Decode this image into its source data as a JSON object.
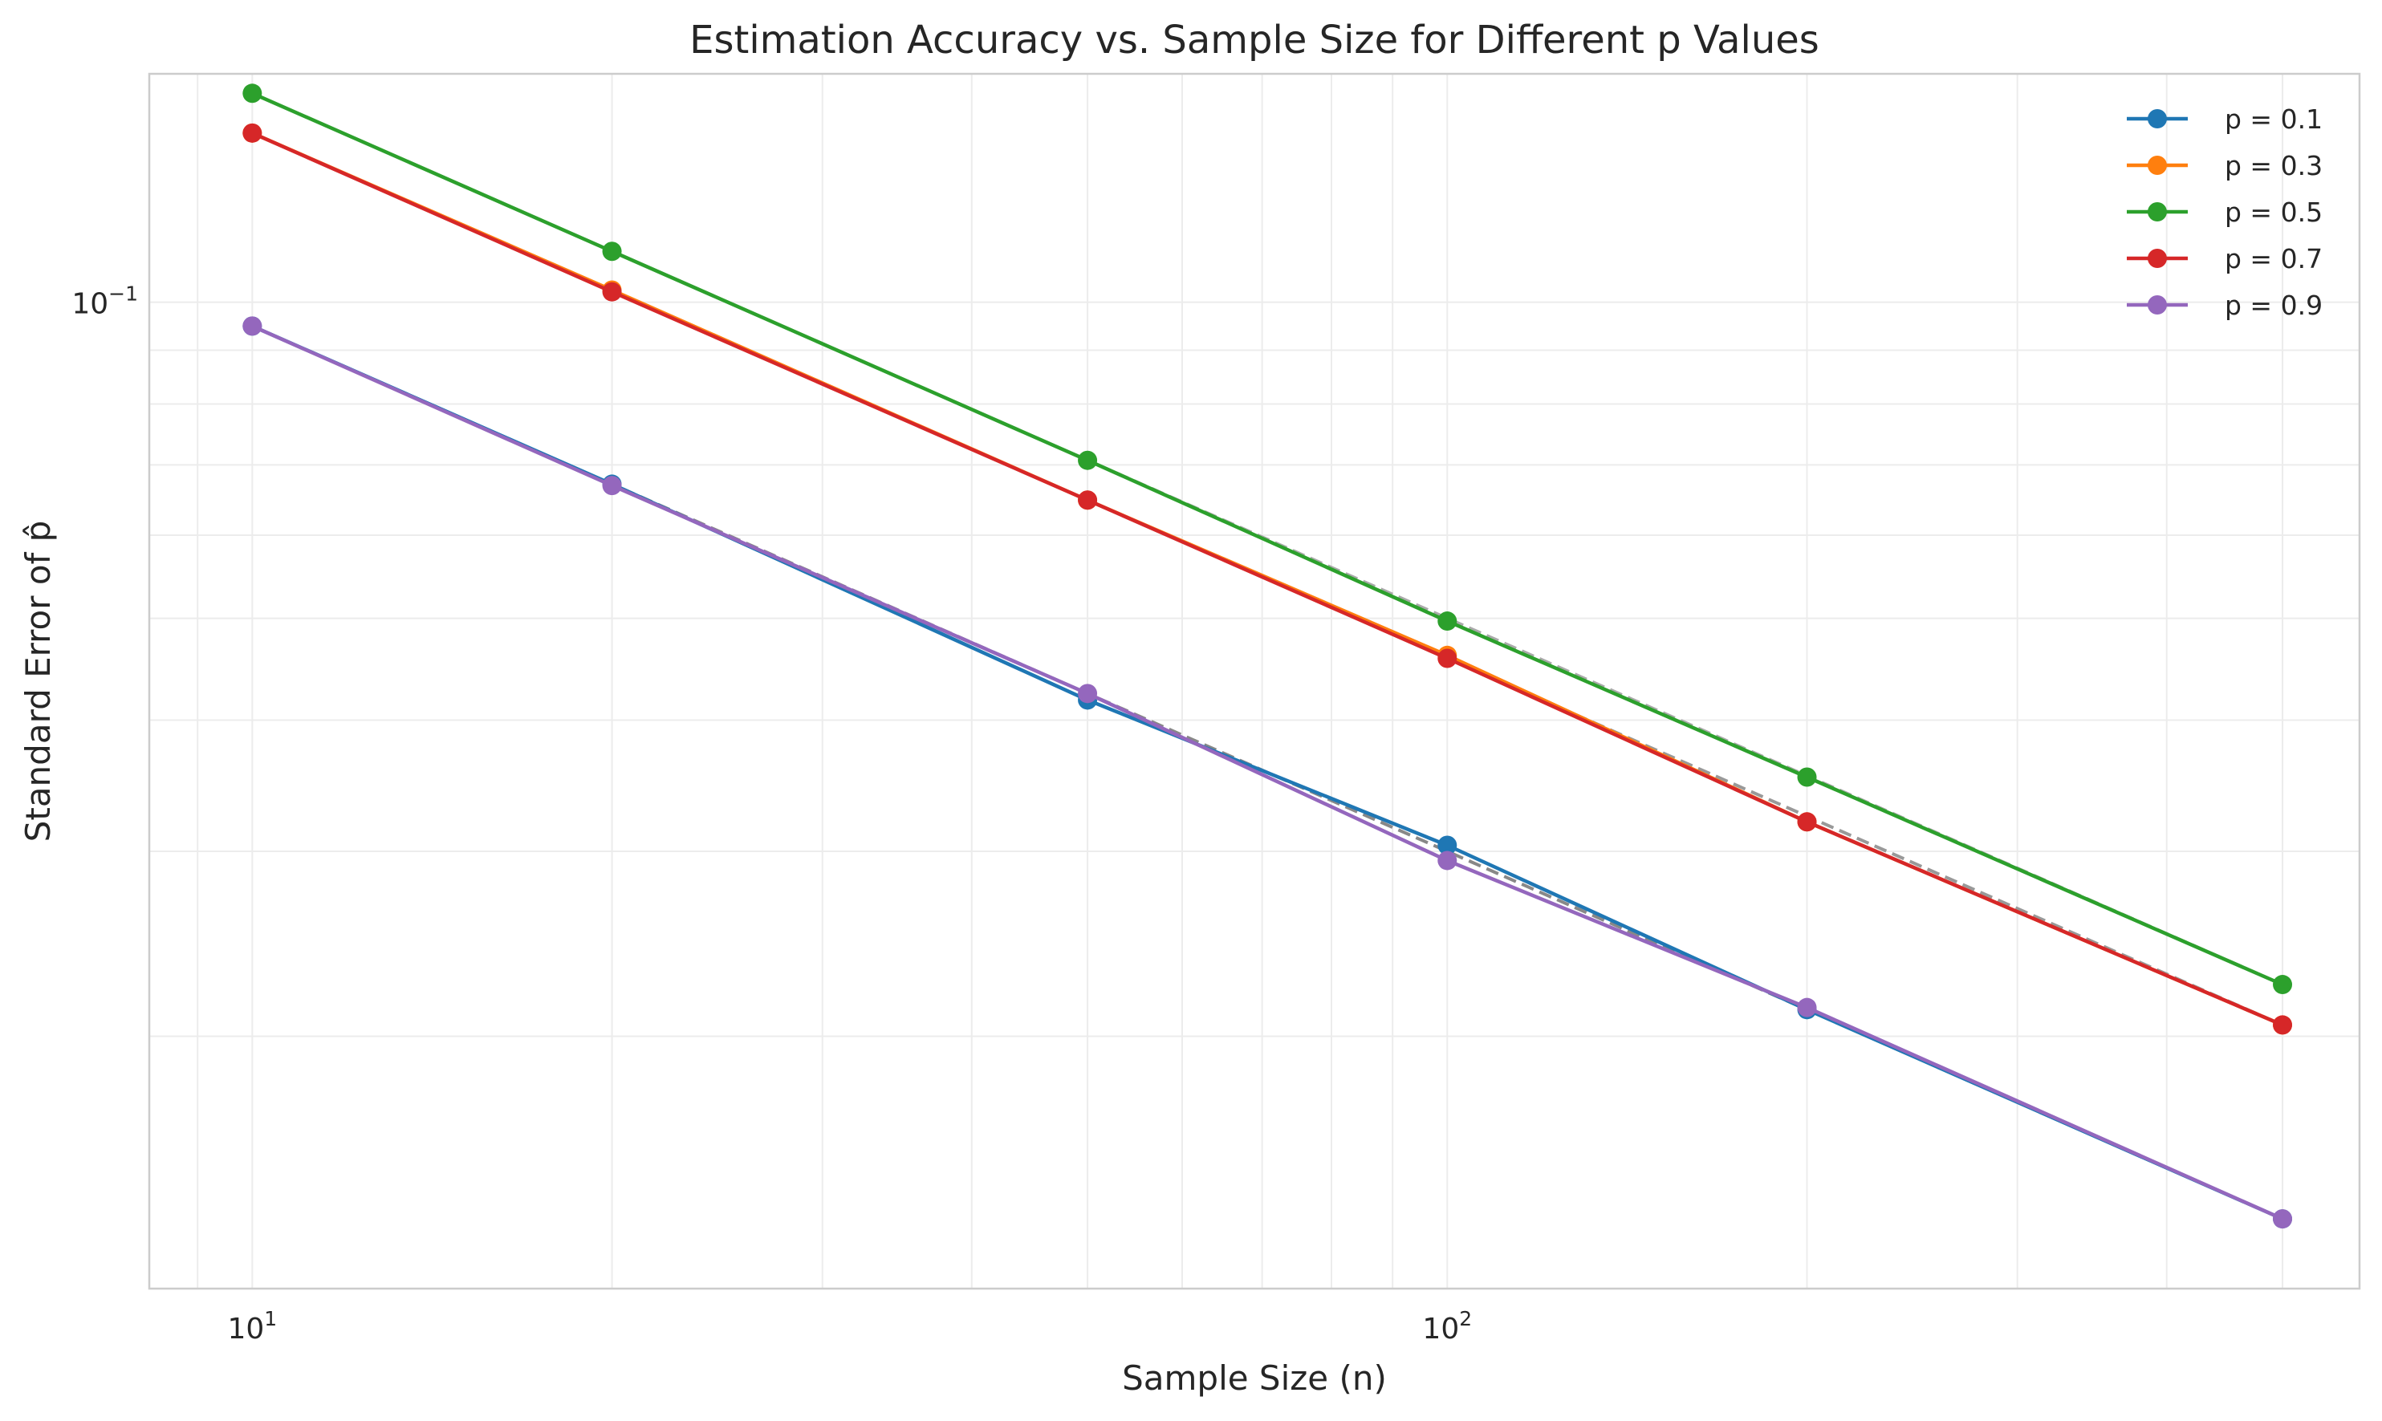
{
  "chart_data": {
    "type": "line",
    "title": "Estimation Accuracy vs. Sample Size for Different p Values",
    "xlabel": "Sample Size (n)",
    "ylabel": "Standard Error of p̂",
    "xscale": "log",
    "yscale": "log",
    "xlim": [
      8.2,
      580
    ],
    "ylim": [
      0.0115,
      0.165
    ],
    "x_major_ticks": [
      {
        "value": 10,
        "base": "10",
        "exp": "1"
      },
      {
        "value": 100,
        "base": "10",
        "exp": "2"
      }
    ],
    "y_major_ticks": [
      {
        "value": 0.1,
        "base": "10",
        "exp": "−1"
      }
    ],
    "grid": true,
    "legend_position": "top-right",
    "x": [
      10,
      20,
      50,
      100,
      200,
      500
    ],
    "series": [
      {
        "name": "p = 0.1",
        "color": "#1f77b4",
        "values": [
          0.0949,
          0.0671,
          0.0418,
          0.0304,
          0.0212,
          0.0134
        ]
      },
      {
        "name": "p = 0.3",
        "color": "#ff7f0e",
        "values": [
          0.1449,
          0.1027,
          0.0648,
          0.0461,
          0.032,
          0.0205
        ]
      },
      {
        "name": "p = 0.5",
        "color": "#2ca02c",
        "values": [
          0.1581,
          0.1118,
          0.0707,
          0.0497,
          0.0353,
          0.0224
        ]
      },
      {
        "name": "p = 0.7",
        "color": "#d62728",
        "values": [
          0.1449,
          0.1023,
          0.0648,
          0.0458,
          0.032,
          0.0205
        ]
      },
      {
        "name": "p = 0.9",
        "color": "#9467bd",
        "values": [
          0.0949,
          0.0669,
          0.0424,
          0.0294,
          0.0213,
          0.0134
        ]
      }
    ],
    "theoretical_reference_lines": [
      {
        "color": "#888888",
        "values": [
          0.0949,
          0.0671,
          0.0424,
          0.03,
          0.0212,
          0.0134
        ]
      },
      {
        "color": "#999999",
        "values": [
          0.1449,
          0.1025,
          0.0648,
          0.0458,
          0.0324,
          0.0205
        ]
      },
      {
        "color": "#aaaaaa",
        "values": [
          0.1581,
          0.1118,
          0.0707,
          0.05,
          0.0354,
          0.0224
        ]
      }
    ]
  }
}
